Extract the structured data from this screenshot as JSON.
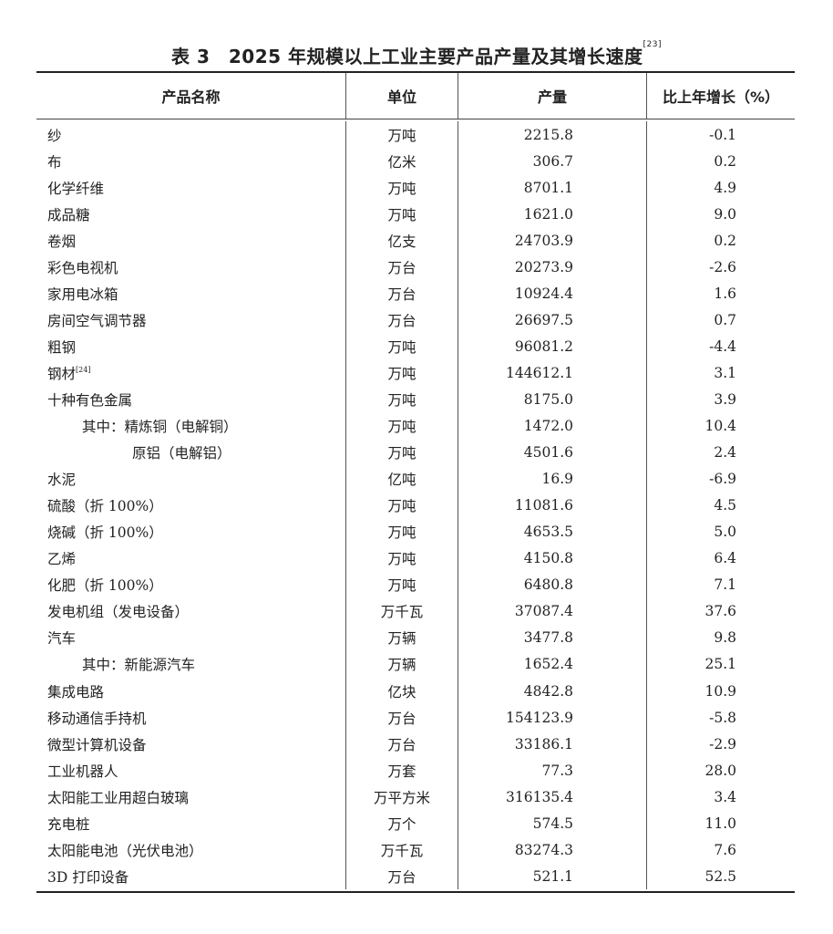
{
  "title": {
    "text": "表 3　2025 年规模以上工业主要产品产量及其增长速度",
    "note": "[23]"
  },
  "headers": [
    "产品名称",
    "单位",
    "产量",
    "比上年增长（%）"
  ],
  "rows": [
    {
      "name": "纱",
      "unit": "万吨",
      "output": "2215.8",
      "growth": "-0.1"
    },
    {
      "name": "布",
      "unit": "亿米",
      "output": "306.7",
      "growth": "0.2"
    },
    {
      "name": "化学纤维",
      "unit": "万吨",
      "output": "8701.1",
      "growth": "4.9"
    },
    {
      "name": "成品糖",
      "unit": "万吨",
      "output": "1621.0",
      "growth": "9.0"
    },
    {
      "name": "卷烟",
      "unit": "亿支",
      "output": "24703.9",
      "growth": "0.2"
    },
    {
      "name": "彩色电视机",
      "unit": "万台",
      "output": "20273.9",
      "growth": "-2.6"
    },
    {
      "name": "家用电冰箱",
      "unit": "万台",
      "output": "10924.4",
      "growth": "1.6"
    },
    {
      "name": "房间空气调节器",
      "unit": "万台",
      "output": "26697.5",
      "growth": "0.7"
    },
    {
      "name": "粗钢",
      "unit": "万吨",
      "output": "96081.2",
      "growth": "-4.4"
    },
    {
      "name": "钢材",
      "note": "[24]",
      "unit": "万吨",
      "output": "144612.1",
      "growth": "3.1"
    },
    {
      "name": "十种有色金属",
      "unit": "万吨",
      "output": "8175.0",
      "growth": "3.9"
    },
    {
      "name": "其中：精炼铜（电解铜）",
      "indent": 1,
      "unit": "万吨",
      "output": "1472.0",
      "growth": "10.4"
    },
    {
      "name": "原铝（电解铝）",
      "indent": 2,
      "unit": "万吨",
      "output": "4501.6",
      "growth": "2.4"
    },
    {
      "name": "水泥",
      "unit": "亿吨",
      "output": "16.9",
      "growth": "-6.9"
    },
    {
      "name": "硫酸（折 100%）",
      "unit": "万吨",
      "output": "11081.6",
      "growth": "4.5"
    },
    {
      "name": "烧碱（折 100%）",
      "unit": "万吨",
      "output": "4653.5",
      "growth": "5.0"
    },
    {
      "name": "乙烯",
      "unit": "万吨",
      "output": "4150.8",
      "growth": "6.4"
    },
    {
      "name": "化肥（折 100%）",
      "unit": "万吨",
      "output": "6480.8",
      "growth": "7.1"
    },
    {
      "name": "发电机组（发电设备）",
      "unit": "万千瓦",
      "output": "37087.4",
      "growth": "37.6"
    },
    {
      "name": "汽车",
      "unit": "万辆",
      "output": "3477.8",
      "growth": "9.8"
    },
    {
      "name": "其中：新能源汽车",
      "indent": 1,
      "unit": "万辆",
      "output": "1652.4",
      "growth": "25.1"
    },
    {
      "name": "集成电路",
      "unit": "亿块",
      "output": "4842.8",
      "growth": "10.9"
    },
    {
      "name": "移动通信手持机",
      "unit": "万台",
      "output": "154123.9",
      "growth": "-5.8"
    },
    {
      "name": "微型计算机设备",
      "unit": "万台",
      "output": "33186.1",
      "growth": "-2.9"
    },
    {
      "name": "工业机器人",
      "unit": "万套",
      "output": "77.3",
      "growth": "28.0"
    },
    {
      "name": "太阳能工业用超白玻璃",
      "unit": "万平方米",
      "output": "316135.4",
      "growth": "3.4"
    },
    {
      "name": "充电桩",
      "unit": "万个",
      "output": "574.5",
      "growth": "11.0"
    },
    {
      "name": "太阳能电池（光伏电池）",
      "unit": "万千瓦",
      "output": "83274.3",
      "growth": "7.6"
    },
    {
      "name": "3D 打印设备",
      "unit": "万台",
      "output": "521.1",
      "growth": "52.5"
    }
  ]
}
